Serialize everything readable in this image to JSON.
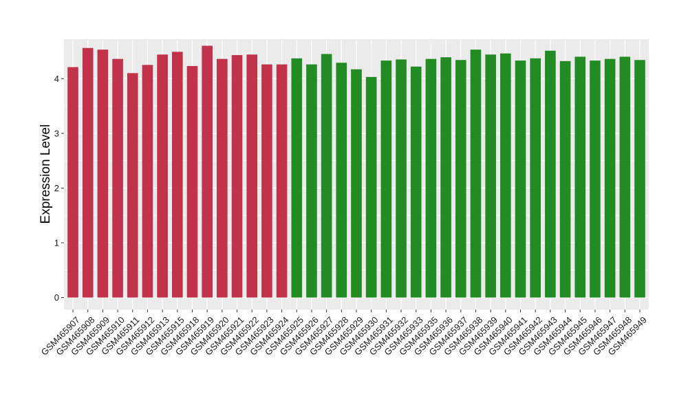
{
  "chart_data": {
    "type": "bar",
    "title": "",
    "xlabel": "",
    "ylabel": "Expression Level",
    "ylim": [
      -0.22,
      4.72
    ],
    "yticks": [
      0,
      1,
      2,
      3,
      4
    ],
    "grid": true,
    "legend": "none",
    "colors": {
      "group1": "#c0334a",
      "group2": "#238b23",
      "panel": "#ebebeb",
      "grid": "#ffffff"
    },
    "categories": [
      "GSM465907",
      "GSM465908",
      "GSM465909",
      "GSM465910",
      "GSM465911",
      "GSM465912",
      "GSM465913",
      "GSM465915",
      "GSM465918",
      "GSM465919",
      "GSM465920",
      "GSM465921",
      "GSM465922",
      "GSM465923",
      "GSM465924",
      "GSM465925",
      "GSM465926",
      "GSM465927",
      "GSM465928",
      "GSM465929",
      "GSM465930",
      "GSM465931",
      "GSM465932",
      "GSM465933",
      "GSM465935",
      "GSM465936",
      "GSM465937",
      "GSM465938",
      "GSM465939",
      "GSM465940",
      "GSM465941",
      "GSM465942",
      "GSM465943",
      "GSM465944",
      "GSM465945",
      "GSM465946",
      "GSM465947",
      "GSM465948",
      "GSM465949"
    ],
    "values": [
      4.21,
      4.56,
      4.53,
      4.36,
      4.1,
      4.25,
      4.44,
      4.49,
      4.23,
      4.6,
      4.36,
      4.43,
      4.44,
      4.26,
      4.26,
      4.37,
      4.26,
      4.45,
      4.29,
      4.17,
      4.03,
      4.33,
      4.35,
      4.22,
      4.36,
      4.39,
      4.34,
      4.53,
      4.44,
      4.46,
      4.33,
      4.37,
      4.51,
      4.32,
      4.4,
      4.33,
      4.36,
      4.4,
      4.34
    ],
    "groups": [
      1,
      1,
      1,
      1,
      1,
      1,
      1,
      1,
      1,
      1,
      1,
      1,
      1,
      1,
      1,
      2,
      2,
      2,
      2,
      2,
      2,
      2,
      2,
      2,
      2,
      2,
      2,
      2,
      2,
      2,
      2,
      2,
      2,
      2,
      2,
      2,
      2,
      2,
      2
    ]
  }
}
